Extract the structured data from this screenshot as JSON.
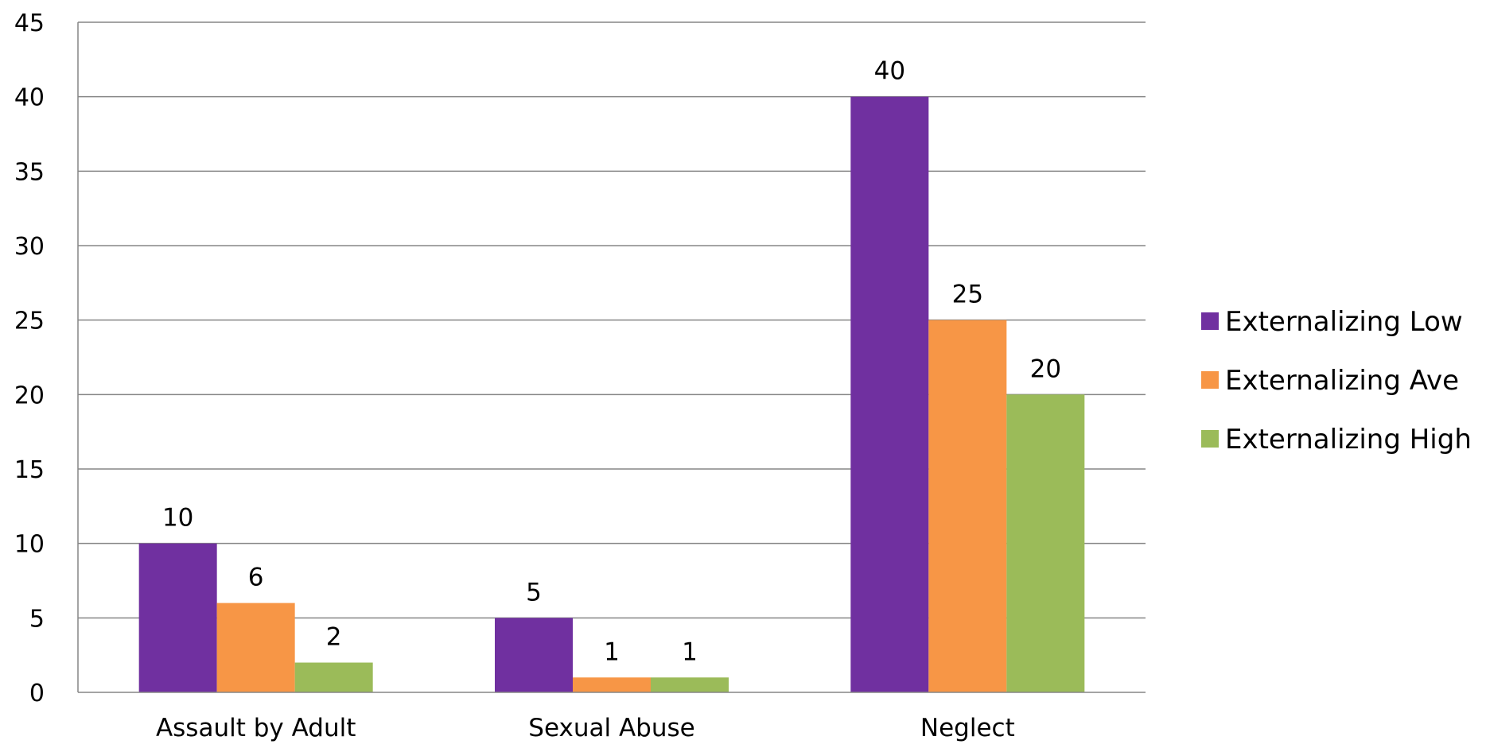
{
  "chart_data": {
    "type": "bar",
    "categories": [
      "Assault by Adult",
      "Sexual Abuse",
      "Neglect"
    ],
    "series": [
      {
        "name": "Externalizing Low",
        "color": "#7030A0",
        "values": [
          10,
          5,
          40
        ]
      },
      {
        "name": "Externalizing Ave",
        "color": "#F79646",
        "values": [
          6,
          1,
          25
        ]
      },
      {
        "name": "Externalizing High",
        "color": "#9BBB59",
        "values": [
          2,
          1,
          20
        ]
      }
    ],
    "ylim": [
      0,
      45
    ],
    "yticks": [
      0,
      5,
      10,
      15,
      20,
      25,
      30,
      35,
      40,
      45
    ],
    "grid": true,
    "data_labels": true,
    "legend_position": "right"
  }
}
